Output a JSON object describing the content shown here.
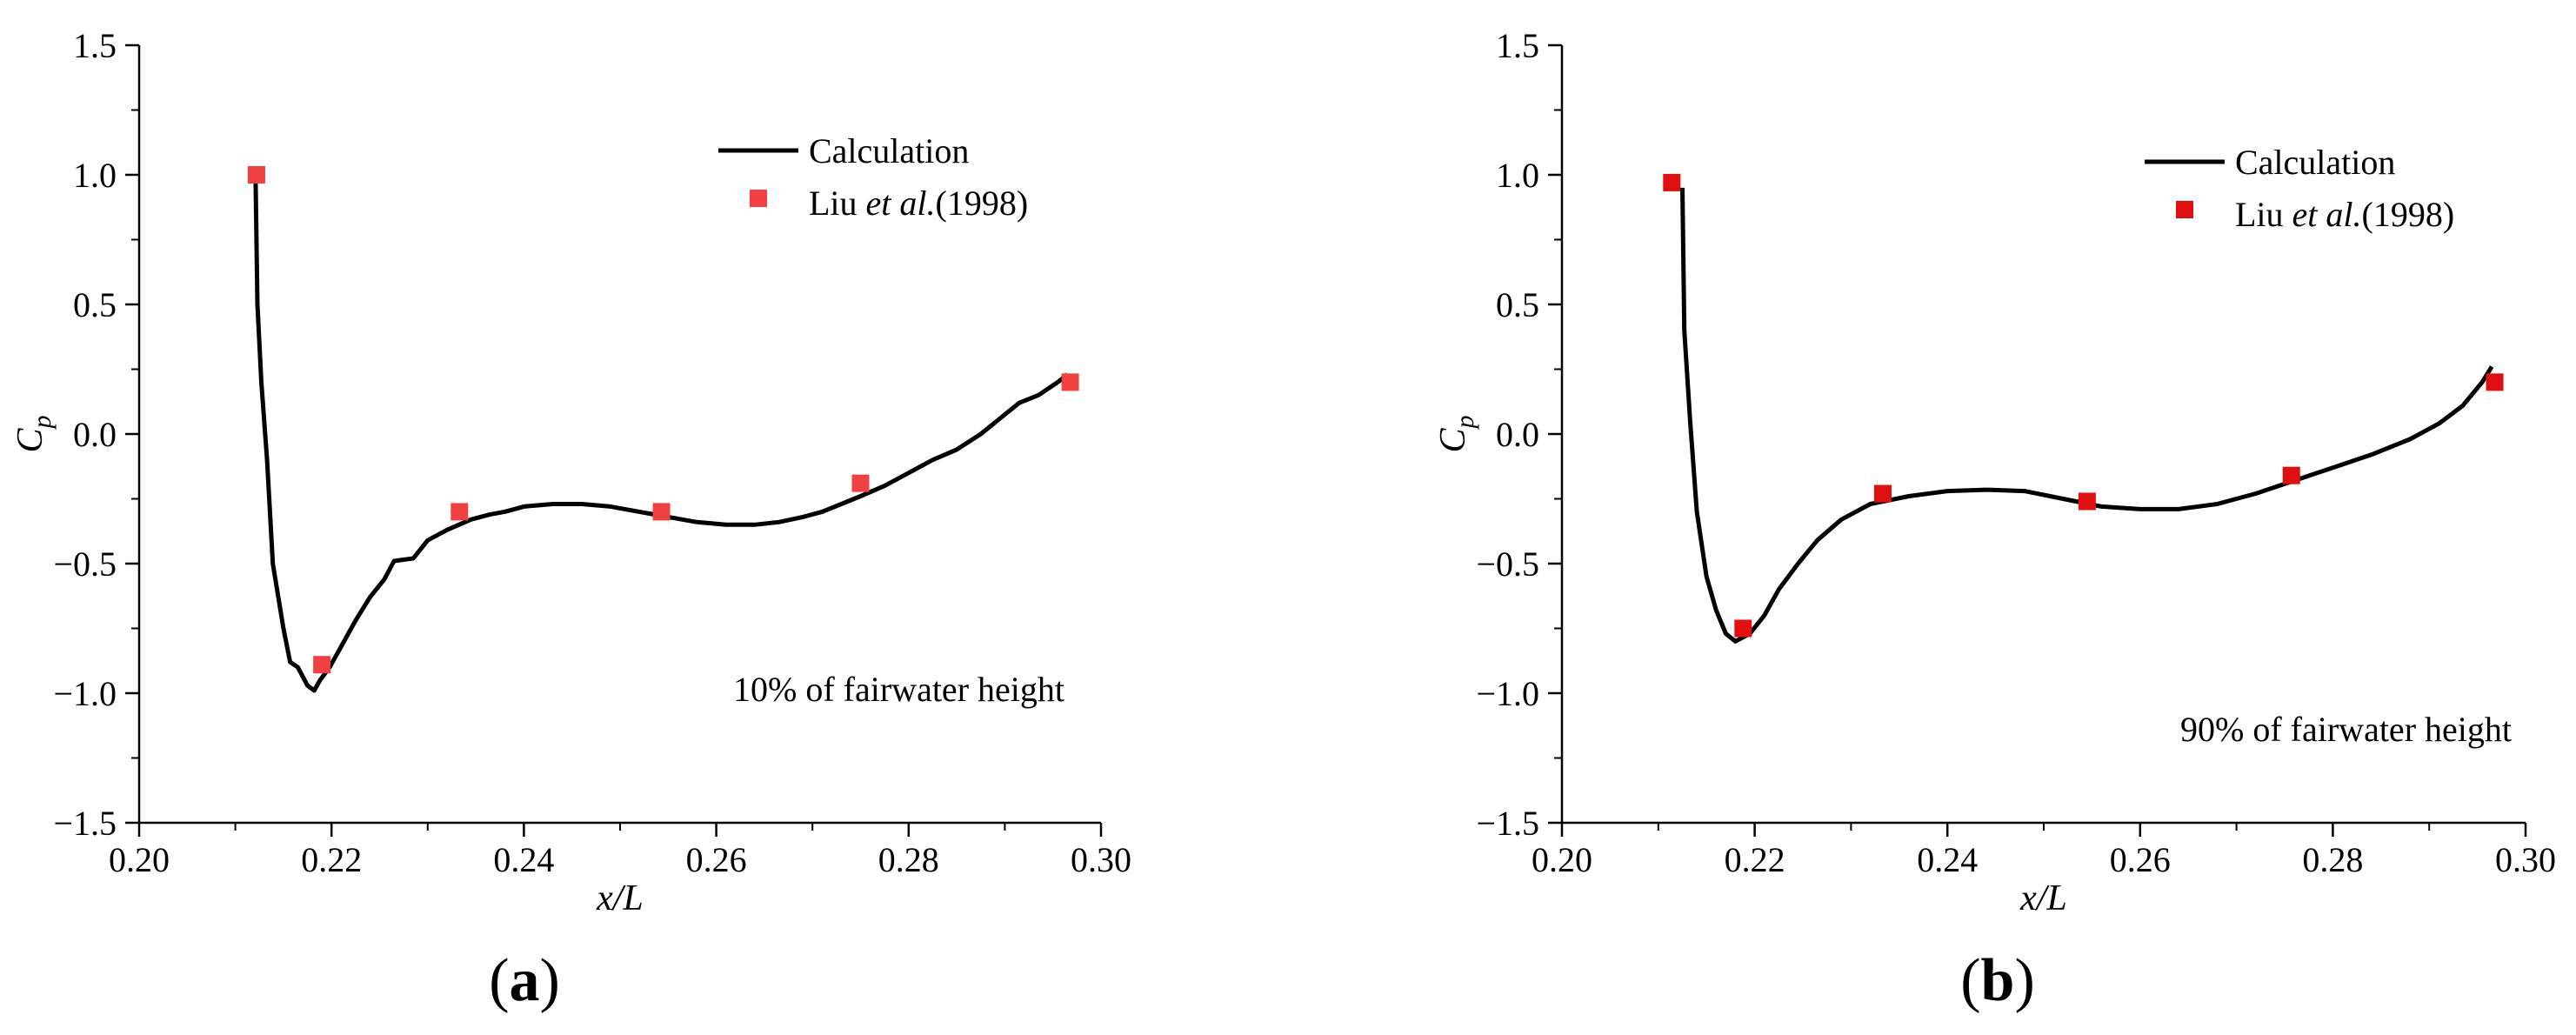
{
  "chart_data": [
    {
      "type": "line",
      "panel_label": [
        "(",
        "a",
        ")"
      ],
      "xlabel": "x/L",
      "ylabel": "C",
      "ylabel_sub": "p",
      "xlim": [
        0.2,
        0.3
      ],
      "ylim": [
        -1.5,
        1.5
      ],
      "xticks": [
        0.2,
        0.22,
        0.24,
        0.26,
        0.28,
        0.3
      ],
      "xtick_labels": [
        "0.20",
        "0.22",
        "0.24",
        "0.26",
        "0.28",
        "0.30"
      ],
      "yticks": [
        -1.5,
        -1.0,
        -0.5,
        0.0,
        0.5,
        1.0,
        1.5
      ],
      "ytick_labels": [
        "−1.5",
        "−1.0",
        "−0.5",
        "0.0",
        "0.5",
        "1.0",
        "1.5"
      ],
      "annotation": "10% of fairwater height",
      "legend_position": "top-right",
      "series": [
        {
          "name": "Calculation",
          "kind": "line",
          "color": "#000000",
          "points": [
            [
              0.2121,
              1.0
            ],
            [
              0.2123,
              0.5
            ],
            [
              0.2127,
              0.2
            ],
            [
              0.2133,
              -0.1
            ],
            [
              0.2139,
              -0.5
            ],
            [
              0.215,
              -0.75
            ],
            [
              0.2157,
              -0.88
            ],
            [
              0.2165,
              -0.9
            ],
            [
              0.2175,
              -0.97
            ],
            [
              0.2182,
              -0.99
            ],
            [
              0.2188,
              -0.95
            ],
            [
              0.2198,
              -0.9
            ],
            [
              0.221,
              -0.82
            ],
            [
              0.2225,
              -0.72
            ],
            [
              0.224,
              -0.63
            ],
            [
              0.2255,
              -0.56
            ],
            [
              0.2265,
              -0.49
            ],
            [
              0.2285,
              -0.48
            ],
            [
              0.23,
              -0.41
            ],
            [
              0.232,
              -0.37
            ],
            [
              0.2345,
              -0.33
            ],
            [
              0.2365,
              -0.31
            ],
            [
              0.238,
              -0.3
            ],
            [
              0.24,
              -0.28
            ],
            [
              0.243,
              -0.27
            ],
            [
              0.246,
              -0.27
            ],
            [
              0.249,
              -0.28
            ],
            [
              0.252,
              -0.3
            ],
            [
              0.255,
              -0.32
            ],
            [
              0.258,
              -0.34
            ],
            [
              0.261,
              -0.35
            ],
            [
              0.264,
              -0.35
            ],
            [
              0.2665,
              -0.34
            ],
            [
              0.269,
              -0.32
            ],
            [
              0.271,
              -0.3
            ],
            [
              0.273,
              -0.27
            ],
            [
              0.275,
              -0.24
            ],
            [
              0.2775,
              -0.2
            ],
            [
              0.28,
              -0.15
            ],
            [
              0.2825,
              -0.1
            ],
            [
              0.285,
              -0.06
            ],
            [
              0.2875,
              0.0
            ],
            [
              0.2895,
              0.06
            ],
            [
              0.2915,
              0.12
            ],
            [
              0.2935,
              0.15
            ],
            [
              0.2955,
              0.2
            ],
            [
              0.2965,
              0.23
            ]
          ]
        },
        {
          "name": "Liu et al.(1998)",
          "name_parts": [
            "Liu ",
            "et al.",
            "(1998)"
          ],
          "kind": "marker",
          "color": "#f04040",
          "points": [
            [
              0.2122,
              1.0
            ],
            [
              0.219,
              -0.89
            ],
            [
              0.2333,
              -0.3
            ],
            [
              0.2543,
              -0.3
            ],
            [
              0.275,
              -0.19
            ],
            [
              0.2968,
              0.2
            ]
          ]
        }
      ]
    },
    {
      "type": "line",
      "panel_label": [
        "(",
        "b",
        ")"
      ],
      "xlabel": "x/L",
      "ylabel": "C",
      "ylabel_sub": "p",
      "xlim": [
        0.2,
        0.3
      ],
      "ylim": [
        -1.5,
        1.5
      ],
      "xticks": [
        0.2,
        0.22,
        0.24,
        0.26,
        0.28,
        0.3
      ],
      "xtick_labels": [
        "0.20",
        "0.22",
        "0.24",
        "0.26",
        "0.28",
        "0.30"
      ],
      "yticks": [
        -1.5,
        -1.0,
        -0.5,
        0.0,
        0.5,
        1.0,
        1.5
      ],
      "ytick_labels": [
        "−1.5",
        "−1.0",
        "−0.5",
        "0.0",
        "0.5",
        "1.0",
        "1.5"
      ],
      "annotation": "90% of fairwater height",
      "legend_position": "top-right",
      "series": [
        {
          "name": "Calculation",
          "kind": "line",
          "color": "#000000",
          "points": [
            [
              0.2125,
              0.95
            ],
            [
              0.2127,
              0.4
            ],
            [
              0.2133,
              0.05
            ],
            [
              0.214,
              -0.3
            ],
            [
              0.215,
              -0.55
            ],
            [
              0.216,
              -0.68
            ],
            [
              0.217,
              -0.77
            ],
            [
              0.218,
              -0.8
            ],
            [
              0.2195,
              -0.77
            ],
            [
              0.221,
              -0.7
            ],
            [
              0.2225,
              -0.6
            ],
            [
              0.2245,
              -0.5
            ],
            [
              0.2265,
              -0.41
            ],
            [
              0.229,
              -0.33
            ],
            [
              0.232,
              -0.27
            ],
            [
              0.236,
              -0.24
            ],
            [
              0.24,
              -0.22
            ],
            [
              0.244,
              -0.215
            ],
            [
              0.248,
              -0.22
            ],
            [
              0.252,
              -0.25
            ],
            [
              0.256,
              -0.28
            ],
            [
              0.26,
              -0.29
            ],
            [
              0.264,
              -0.29
            ],
            [
              0.268,
              -0.27
            ],
            [
              0.272,
              -0.23
            ],
            [
              0.276,
              -0.18
            ],
            [
              0.28,
              -0.13
            ],
            [
              0.284,
              -0.08
            ],
            [
              0.288,
              -0.02
            ],
            [
              0.291,
              0.04
            ],
            [
              0.2935,
              0.11
            ],
            [
              0.2955,
              0.2
            ],
            [
              0.2965,
              0.26
            ]
          ]
        },
        {
          "name": "Liu et al.(1998)",
          "name_parts": [
            "Liu ",
            "et al.",
            "(1998)"
          ],
          "kind": "marker",
          "color": "#e01010",
          "points": [
            [
              0.2114,
              0.97
            ],
            [
              0.2188,
              -0.75
            ],
            [
              0.2333,
              -0.23
            ],
            [
              0.2545,
              -0.26
            ],
            [
              0.2757,
              -0.16
            ],
            [
              0.2968,
              0.2
            ]
          ]
        }
      ]
    }
  ]
}
